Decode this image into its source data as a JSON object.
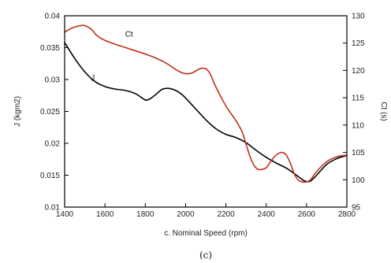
{
  "chart_data": {
    "type": "line",
    "xlabel": "c. Nominal Speed (rpm)",
    "ylabel_left": "J (kgm2)",
    "ylabel_right": "Ct (s)",
    "caption": "(c)",
    "xlim": [
      1400,
      2800
    ],
    "ylim_left": [
      0.01,
      0.04
    ],
    "ylim_right": [
      95,
      130
    ],
    "x_ticks": [
      1400,
      1600,
      1800,
      2000,
      2200,
      2400,
      2600,
      2800
    ],
    "y_left_ticks": [
      0.01,
      0.015,
      0.02,
      0.025,
      0.03,
      0.035,
      0.04
    ],
    "y_right_ticks": [
      95,
      100,
      105,
      110,
      115,
      120,
      125,
      130
    ],
    "grid": false,
    "colors": {
      "J": "#000000",
      "Ct": "#c0311a"
    },
    "series": [
      {
        "name": "J",
        "axis": "left",
        "label_at": {
          "x": 1530,
          "y": 0.0298
        },
        "x": [
          1400,
          1450,
          1500,
          1550,
          1600,
          1650,
          1700,
          1750,
          1780,
          1800,
          1820,
          1850,
          1880,
          1900,
          1920,
          1950,
          1980,
          2000,
          2050,
          2100,
          2150,
          2200,
          2250,
          2300,
          2350,
          2400,
          2450,
          2500,
          2550,
          2580,
          2600,
          2620,
          2650,
          2700,
          2750,
          2800
        ],
        "values": [
          0.0358,
          0.0333,
          0.0312,
          0.0297,
          0.0289,
          0.0285,
          0.0283,
          0.0278,
          0.0272,
          0.0268,
          0.0269,
          0.0276,
          0.0284,
          0.0286,
          0.0286,
          0.0283,
          0.0277,
          0.0271,
          0.0254,
          0.0237,
          0.0223,
          0.0214,
          0.0209,
          0.0201,
          0.0189,
          0.0178,
          0.0169,
          0.0161,
          0.015,
          0.0143,
          0.014,
          0.0141,
          0.015,
          0.0167,
          0.0176,
          0.0181
        ]
      },
      {
        "name": "Ct",
        "axis": "right",
        "label_at": {
          "x": 1700,
          "y": 126.2
        },
        "x": [
          1400,
          1440,
          1480,
          1500,
          1530,
          1560,
          1600,
          1650,
          1700,
          1750,
          1800,
          1850,
          1900,
          1950,
          1980,
          2000,
          2030,
          2060,
          2080,
          2100,
          2120,
          2150,
          2200,
          2250,
          2280,
          2300,
          2320,
          2340,
          2360,
          2380,
          2400,
          2420,
          2440,
          2460,
          2480,
          2500,
          2520,
          2540,
          2560,
          2580,
          2600,
          2620,
          2650,
          2700,
          2750,
          2800
        ],
        "values": [
          127.0,
          127.8,
          128.2,
          128.2,
          127.6,
          126.4,
          125.5,
          124.8,
          124.2,
          123.6,
          123.0,
          122.3,
          121.4,
          120.2,
          119.6,
          119.4,
          119.5,
          120.1,
          120.4,
          120.3,
          119.5,
          117.0,
          113.5,
          110.8,
          108.8,
          106.5,
          104.2,
          102.6,
          101.9,
          101.9,
          102.2,
          103.2,
          104.2,
          104.8,
          105.0,
          104.5,
          103.0,
          101.0,
          99.9,
          99.6,
          99.6,
          100.0,
          101.5,
          103.3,
          104.2,
          104.5
        ]
      }
    ]
  }
}
